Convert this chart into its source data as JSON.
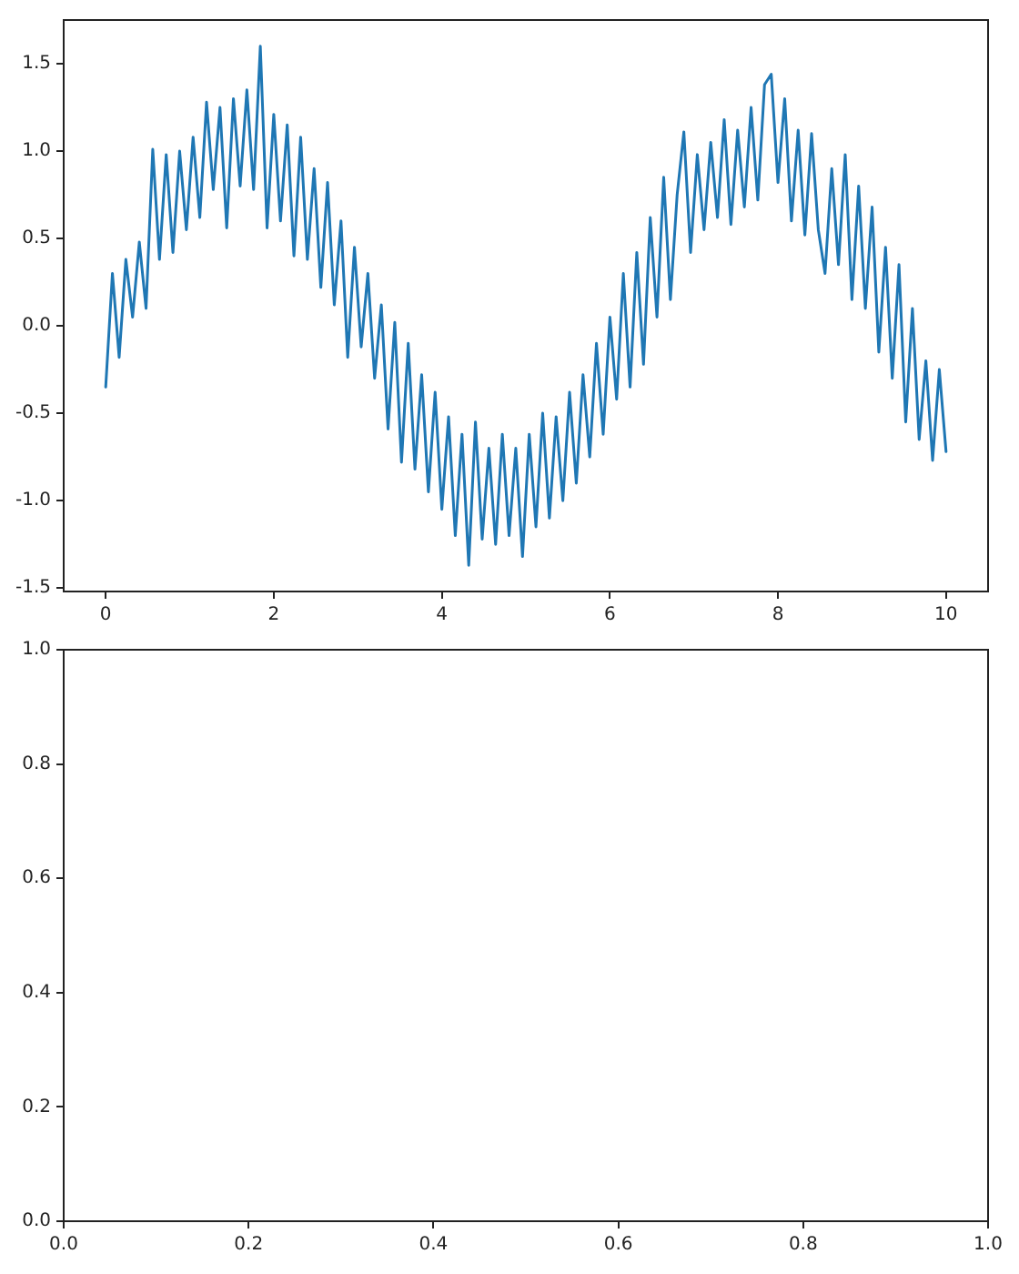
{
  "chart_data": [
    {
      "type": "line",
      "color": "#1f77b4",
      "x": [
        0,
        0.08,
        0.16,
        0.24,
        0.32,
        0.4,
        0.48,
        0.56,
        0.64,
        0.72,
        0.8,
        0.88,
        0.96,
        1.04,
        1.12,
        1.2,
        1.28,
        1.36,
        1.44,
        1.52,
        1.6,
        1.68,
        1.76,
        1.84,
        1.92,
        2,
        2.08,
        2.16,
        2.24,
        2.32,
        2.4,
        2.48,
        2.56,
        2.64,
        2.72,
        2.8,
        2.88,
        2.96,
        3.04,
        3.12,
        3.2,
        3.28,
        3.36,
        3.44,
        3.52,
        3.6,
        3.68,
        3.76,
        3.84,
        3.92,
        4,
        4.08,
        4.16,
        4.24,
        4.32,
        4.4,
        4.48,
        4.56,
        4.64,
        4.72,
        4.8,
        4.88,
        4.96,
        5.04,
        5.12,
        5.2,
        5.28,
        5.36,
        5.44,
        5.52,
        5.6,
        5.68,
        5.76,
        5.84,
        5.92,
        6,
        6.08,
        6.16,
        6.24,
        6.32,
        6.4,
        6.48,
        6.56,
        6.64,
        6.72,
        6.8,
        6.88,
        6.96,
        7.04,
        7.12,
        7.2,
        7.28,
        7.36,
        7.44,
        7.52,
        7.6,
        7.68,
        7.76,
        7.84,
        7.92,
        8,
        8.08,
        8.16,
        8.24,
        8.32,
        8.4,
        8.48,
        8.56,
        8.64,
        8.72,
        8.8,
        8.88,
        8.96,
        9.04,
        9.12,
        9.2,
        9.28,
        9.36,
        9.44,
        9.52,
        9.6,
        9.68,
        9.76,
        9.84,
        9.92,
        10
      ],
      "values": [
        -0.35,
        0.3,
        -0.18,
        0.38,
        0.05,
        0.48,
        0.1,
        1.01,
        0.38,
        0.98,
        0.42,
        1.0,
        0.55,
        1.08,
        0.62,
        1.28,
        0.78,
        1.25,
        0.56,
        1.3,
        0.8,
        1.35,
        0.78,
        1.6,
        0.56,
        1.21,
        0.6,
        1.15,
        0.4,
        1.08,
        0.38,
        0.9,
        0.22,
        0.82,
        0.12,
        0.6,
        -0.18,
        0.45,
        -0.12,
        0.3,
        -0.3,
        0.12,
        -0.59,
        0.02,
        -0.78,
        -0.1,
        -0.82,
        -0.28,
        -0.95,
        -0.38,
        -1.05,
        -0.52,
        -1.2,
        -0.62,
        -1.37,
        -0.55,
        -1.22,
        -0.7,
        -1.25,
        -0.62,
        -1.2,
        -0.7,
        -1.32,
        -0.62,
        -1.15,
        -0.5,
        -1.1,
        -0.52,
        -1.0,
        -0.38,
        -0.9,
        -0.28,
        -0.75,
        -0.1,
        -0.62,
        0.05,
        -0.42,
        0.3,
        -0.35,
        0.42,
        -0.22,
        0.62,
        0.05,
        0.85,
        0.15,
        0.75,
        1.11,
        0.42,
        0.98,
        0.55,
        1.05,
        0.62,
        1.18,
        0.58,
        1.12,
        0.68,
        1.25,
        0.72,
        1.38,
        1.44,
        0.82,
        1.3,
        0.6,
        1.12,
        0.52,
        1.1,
        0.55,
        0.3,
        0.9,
        0.35,
        0.98,
        0.15,
        0.8,
        0.1,
        0.68,
        -0.15,
        0.45,
        -0.3,
        0.35,
        -0.55,
        0.1,
        -0.65,
        -0.2,
        -0.77,
        -0.25,
        -0.72
      ],
      "xlim": [
        -0.5,
        10.5
      ],
      "xticks": [
        0,
        2,
        4,
        6,
        8,
        10
      ],
      "ylim": [
        -1.52,
        1.75
      ],
      "yticks": [
        -1.5,
        {
          "value": -1,
          "label": "-1.0"
        },
        -0.5,
        {
          "value": 0,
          "label": "0.0"
        },
        0.5,
        {
          "value": 1,
          "label": "1.0"
        },
        1.5
      ]
    },
    {
      "type": "line",
      "xlim": [
        0,
        1
      ],
      "xticks": [
        {
          "value": 0,
          "label": "0.0"
        },
        0.2,
        0.4,
        0.6,
        0.8,
        {
          "value": 1,
          "label": "1.0"
        }
      ],
      "ylim": [
        0,
        1
      ],
      "yticks": [
        {
          "value": 0,
          "label": "0.0"
        },
        0.2,
        0.4,
        0.6,
        0.8,
        {
          "value": 1,
          "label": "1.0"
        }
      ]
    }
  ]
}
